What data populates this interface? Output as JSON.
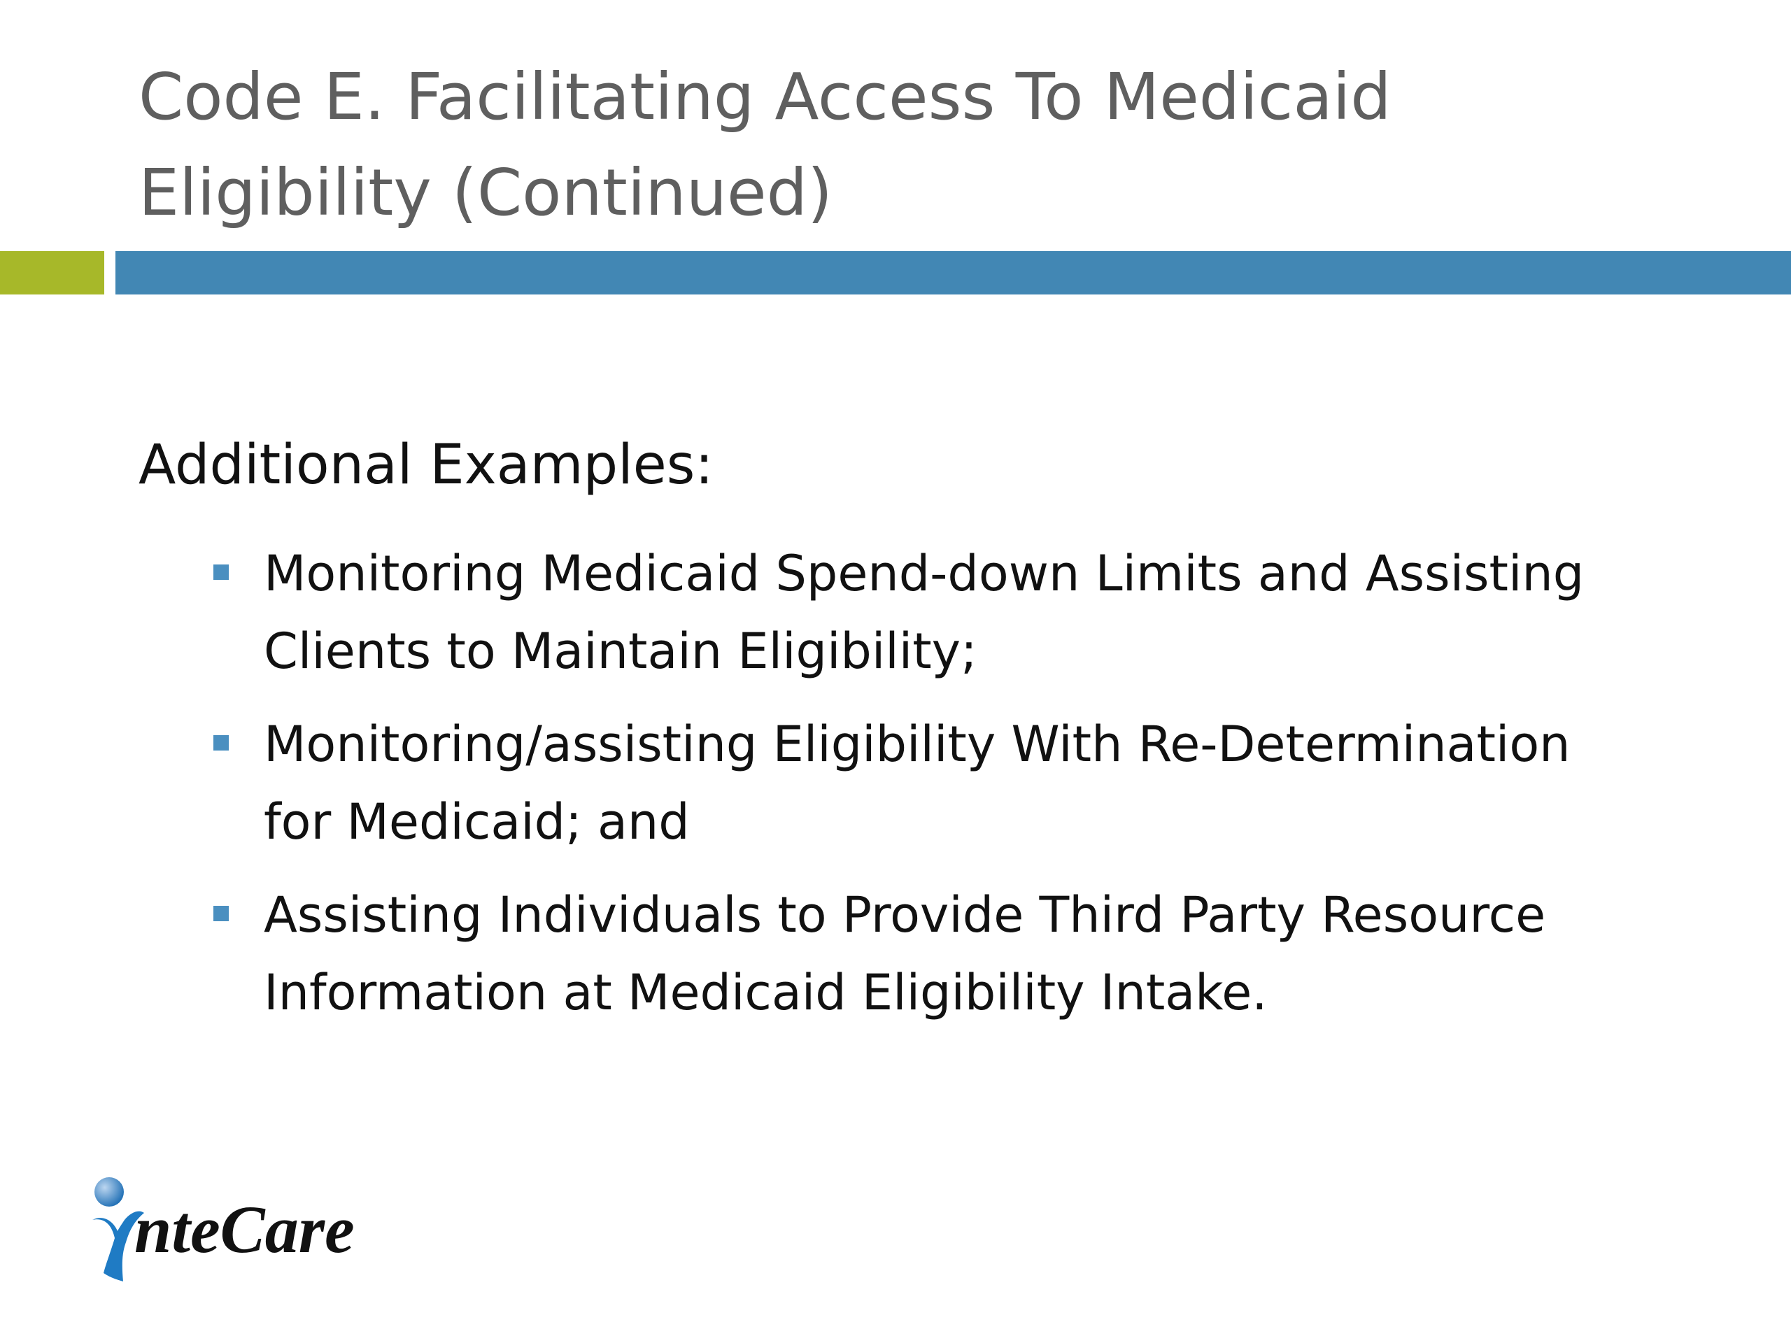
{
  "slide": {
    "title_lines": [
      "Code E.  Facilitating Access To Medicaid",
      "Eligibility (Continued)"
    ],
    "subheading": "Additional Examples:",
    "bullets": [
      {
        "lines": [
          "Monitoring Medicaid Spend-down Limits and Assisting",
          "Clients to Maintain Eligibility;"
        ]
      },
      {
        "lines": [
          "Monitoring/assisting Eligibility With Re-Determination",
          "for Medicaid; and"
        ]
      },
      {
        "lines": [
          "Assisting Individuals to Provide Third Party Resource",
          "Information at Medicaid Eligibility Intake."
        ]
      }
    ],
    "logo_text": "nteCare",
    "colors": {
      "accent_green": "#a7b829",
      "accent_blue": "#4287b4",
      "title": "#5f5f5f",
      "bullet": "#4a8fc0"
    }
  }
}
